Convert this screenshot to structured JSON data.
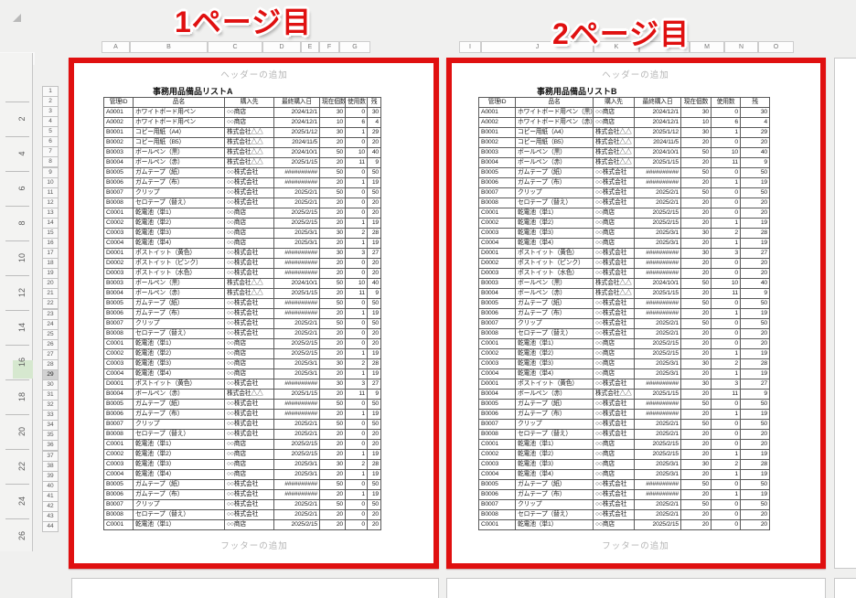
{
  "annotations": {
    "page1_label": "1ページ目",
    "page2_label": "2ページ目",
    "accent_red": "#e01010",
    "ruler_highlight_green": "#d6e8cf"
  },
  "ruler": {
    "numbers": [
      2,
      4,
      6,
      8,
      10,
      12,
      14,
      16,
      18,
      20,
      22,
      24,
      26
    ],
    "highlight_near": 16
  },
  "row_headers": {
    "numbers": [
      1,
      2,
      3,
      4,
      5,
      6,
      7,
      8,
      9,
      10,
      11,
      12,
      13,
      14,
      15,
      16,
      17,
      18,
      19,
      20,
      21,
      22,
      23,
      24,
      25,
      26,
      27,
      28,
      29,
      30,
      31,
      32,
      33,
      34,
      35,
      36,
      37,
      38,
      39,
      40,
      41,
      42,
      43,
      44
    ],
    "active": 29
  },
  "column_strips": {
    "page1": [
      "A",
      "B",
      "C",
      "D",
      "E",
      "F",
      "G"
    ],
    "page2": [
      "I",
      "J",
      "K",
      "L",
      "M",
      "N",
      "O"
    ]
  },
  "pages": [
    {
      "header_placeholder": "ヘッダーの追加",
      "footer_placeholder": "フッターの追加",
      "title": "事務用品備品リストA",
      "table": {
        "headers": [
          "管理ID",
          "品名",
          "購入先",
          "最終購入日",
          "現在個数",
          "使用数",
          "残"
        ],
        "rows": [
          [
            "A0001",
            "ホワイトボード用ペン",
            "○○商店",
            "2024/12/1",
            "30",
            "0",
            "30"
          ],
          [
            "A0002",
            "ホワイトボード用ペン",
            "○○商店",
            "2024/12/1",
            "10",
            "6",
            "4"
          ],
          [
            "B0001",
            "コピー用紙（A4）",
            "株式会社△△",
            "2025/1/12",
            "30",
            "1",
            "29"
          ],
          [
            "B0002",
            "コピー用紙（B5）",
            "株式会社△△",
            "2024/11/5",
            "20",
            "0",
            "20"
          ],
          [
            "B0003",
            "ボールペン（黒）",
            "株式会社△△",
            "2024/10/1",
            "50",
            "10",
            "40"
          ],
          [
            "B0004",
            "ボールペン（赤）",
            "株式会社△△",
            "2025/1/15",
            "20",
            "11",
            "9"
          ],
          [
            "B0005",
            "ガムテープ（紙）",
            "○○株式会社",
            "##########",
            "50",
            "0",
            "50"
          ],
          [
            "B0006",
            "ガムテープ（布）",
            "○○株式会社",
            "##########",
            "20",
            "1",
            "19"
          ],
          [
            "B0007",
            "クリップ",
            "○○株式会社",
            "2025/2/1",
            "50",
            "0",
            "50"
          ],
          [
            "B0008",
            "セロテープ（替え）",
            "○○株式会社",
            "2025/2/1",
            "20",
            "0",
            "20"
          ],
          [
            "C0001",
            "乾電池（単1）",
            "○○商店",
            "2025/2/15",
            "20",
            "0",
            "20"
          ],
          [
            "C0002",
            "乾電池（単2）",
            "○○商店",
            "2025/2/15",
            "20",
            "1",
            "19"
          ],
          [
            "C0003",
            "乾電池（単3）",
            "○○商店",
            "2025/3/1",
            "30",
            "2",
            "28"
          ],
          [
            "C0004",
            "乾電池（単4）",
            "○○商店",
            "2025/3/1",
            "20",
            "1",
            "19"
          ],
          [
            "D0001",
            "ポストイット（黄色）",
            "○○株式会社",
            "##########",
            "30",
            "3",
            "27"
          ],
          [
            "D0002",
            "ポストイット（ピンク）",
            "○○株式会社",
            "##########",
            "20",
            "0",
            "20"
          ],
          [
            "D0003",
            "ポストイット（水色）",
            "○○株式会社",
            "##########",
            "20",
            "0",
            "20"
          ],
          [
            "B0003",
            "ボールペン（黒）",
            "株式会社△△",
            "2024/10/1",
            "50",
            "10",
            "40"
          ],
          [
            "B0004",
            "ボールペン（赤）",
            "株式会社△△",
            "2025/1/15",
            "20",
            "11",
            "9"
          ],
          [
            "B0005",
            "ガムテープ（紙）",
            "○○株式会社",
            "##########",
            "50",
            "0",
            "50"
          ],
          [
            "B0006",
            "ガムテープ（布）",
            "○○株式会社",
            "##########",
            "20",
            "1",
            "19"
          ],
          [
            "B0007",
            "クリップ",
            "○○株式会社",
            "2025/2/1",
            "50",
            "0",
            "50"
          ],
          [
            "B0008",
            "セロテープ（替え）",
            "○○株式会社",
            "2025/2/1",
            "20",
            "0",
            "20"
          ],
          [
            "C0001",
            "乾電池（単1）",
            "○○商店",
            "2025/2/15",
            "20",
            "0",
            "20"
          ],
          [
            "C0002",
            "乾電池（単2）",
            "○○商店",
            "2025/2/15",
            "20",
            "1",
            "19"
          ],
          [
            "C0003",
            "乾電池（単3）",
            "○○商店",
            "2025/3/1",
            "30",
            "2",
            "28"
          ],
          [
            "C0004",
            "乾電池（単4）",
            "○○商店",
            "2025/3/1",
            "20",
            "1",
            "19"
          ],
          [
            "D0001",
            "ポストイット（黄色）",
            "○○株式会社",
            "##########",
            "30",
            "3",
            "27"
          ],
          [
            "B0004",
            "ボールペン（赤）",
            "株式会社△△",
            "2025/1/15",
            "20",
            "11",
            "9"
          ],
          [
            "B0005",
            "ガムテープ（紙）",
            "○○株式会社",
            "##########",
            "50",
            "0",
            "50"
          ],
          [
            "B0006",
            "ガムテープ（布）",
            "○○株式会社",
            "##########",
            "20",
            "1",
            "19"
          ],
          [
            "B0007",
            "クリップ",
            "○○株式会社",
            "2025/2/1",
            "50",
            "0",
            "50"
          ],
          [
            "B0008",
            "セロテープ（替え）",
            "○○株式会社",
            "2025/2/1",
            "20",
            "0",
            "20"
          ],
          [
            "C0001",
            "乾電池（単1）",
            "○○商店",
            "2025/2/15",
            "20",
            "0",
            "20"
          ],
          [
            "C0002",
            "乾電池（単2）",
            "○○商店",
            "2025/2/15",
            "20",
            "1",
            "19"
          ],
          [
            "C0003",
            "乾電池（単3）",
            "○○商店",
            "2025/3/1",
            "30",
            "2",
            "28"
          ],
          [
            "C0004",
            "乾電池（単4）",
            "○○商店",
            "2025/3/1",
            "20",
            "1",
            "19"
          ],
          [
            "B0005",
            "ガムテープ（紙）",
            "○○株式会社",
            "##########",
            "50",
            "0",
            "50"
          ],
          [
            "B0006",
            "ガムテープ（布）",
            "○○株式会社",
            "##########",
            "20",
            "1",
            "19"
          ],
          [
            "B0007",
            "クリップ",
            "○○株式会社",
            "2025/2/1",
            "50",
            "0",
            "50"
          ],
          [
            "B0008",
            "セロテープ（替え）",
            "○○株式会社",
            "2025/2/1",
            "20",
            "0",
            "20"
          ],
          [
            "C0001",
            "乾電池（単1）",
            "○○商店",
            "2025/2/15",
            "20",
            "0",
            "20"
          ]
        ]
      }
    },
    {
      "header_placeholder": "ヘッダーの追加",
      "footer_placeholder": "フッターの追加",
      "title": "事務用品備品リストB",
      "table": {
        "headers": [
          "管理ID",
          "品名",
          "購入先",
          "最終購入日",
          "現在個数",
          "使用数",
          "残"
        ],
        "rows": [
          [
            "A0001",
            "ホワイトボード用ペン（黒）",
            "○○商店",
            "2024/12/1",
            "30",
            "0",
            "30"
          ],
          [
            "A0002",
            "ホワイトボード用ペン（赤）",
            "○○商店",
            "2024/12/1",
            "10",
            "6",
            "4"
          ],
          [
            "B0001",
            "コピー用紙（A4）",
            "株式会社△△",
            "2025/1/12",
            "30",
            "1",
            "29"
          ],
          [
            "B0002",
            "コピー用紙（B5）",
            "株式会社△△",
            "2024/11/5",
            "20",
            "0",
            "20"
          ],
          [
            "B0003",
            "ボールペン（黒）",
            "株式会社△△",
            "2024/10/1",
            "50",
            "10",
            "40"
          ],
          [
            "B0004",
            "ボールペン（赤）",
            "株式会社△△",
            "2025/1/15",
            "20",
            "11",
            "9"
          ],
          [
            "B0005",
            "ガムテープ（紙）",
            "○○株式会社",
            "##########",
            "50",
            "0",
            "50"
          ],
          [
            "B0006",
            "ガムテープ（布）",
            "○○株式会社",
            "##########",
            "20",
            "1",
            "19"
          ],
          [
            "B0007",
            "クリップ",
            "○○株式会社",
            "2025/2/1",
            "50",
            "0",
            "50"
          ],
          [
            "B0008",
            "セロテープ（替え）",
            "○○株式会社",
            "2025/2/1",
            "20",
            "0",
            "20"
          ],
          [
            "C0001",
            "乾電池（単1）",
            "○○商店",
            "2025/2/15",
            "20",
            "0",
            "20"
          ],
          [
            "C0002",
            "乾電池（単2）",
            "○○商店",
            "2025/2/15",
            "20",
            "1",
            "19"
          ],
          [
            "C0003",
            "乾電池（単3）",
            "○○商店",
            "2025/3/1",
            "30",
            "2",
            "28"
          ],
          [
            "C0004",
            "乾電池（単4）",
            "○○商店",
            "2025/3/1",
            "20",
            "1",
            "19"
          ],
          [
            "D0001",
            "ポストイット（黄色）",
            "○○株式会社",
            "##########",
            "30",
            "3",
            "27"
          ],
          [
            "D0002",
            "ポストイット（ピンク）",
            "○○株式会社",
            "##########",
            "20",
            "0",
            "20"
          ],
          [
            "D0003",
            "ポストイット（水色）",
            "○○株式会社",
            "##########",
            "20",
            "0",
            "20"
          ],
          [
            "B0003",
            "ボールペン（黒）",
            "株式会社△△",
            "2024/10/1",
            "50",
            "10",
            "40"
          ],
          [
            "B0004",
            "ボールペン（赤）",
            "株式会社△△",
            "2025/1/15",
            "20",
            "11",
            "9"
          ],
          [
            "B0005",
            "ガムテープ（紙）",
            "○○株式会社",
            "##########",
            "50",
            "0",
            "50"
          ],
          [
            "B0006",
            "ガムテープ（布）",
            "○○株式会社",
            "##########",
            "20",
            "1",
            "19"
          ],
          [
            "B0007",
            "クリップ",
            "○○株式会社",
            "2025/2/1",
            "50",
            "0",
            "50"
          ],
          [
            "B0008",
            "セロテープ（替え）",
            "○○株式会社",
            "2025/2/1",
            "20",
            "0",
            "20"
          ],
          [
            "C0001",
            "乾電池（単1）",
            "○○商店",
            "2025/2/15",
            "20",
            "0",
            "20"
          ],
          [
            "C0002",
            "乾電池（単2）",
            "○○商店",
            "2025/2/15",
            "20",
            "1",
            "19"
          ],
          [
            "C0003",
            "乾電池（単3）",
            "○○商店",
            "2025/3/1",
            "30",
            "2",
            "28"
          ],
          [
            "C0004",
            "乾電池（単4）",
            "○○商店",
            "2025/3/1",
            "20",
            "1",
            "19"
          ],
          [
            "D0001",
            "ポストイット（黄色）",
            "○○株式会社",
            "##########",
            "30",
            "3",
            "27"
          ],
          [
            "B0004",
            "ボールペン（赤）",
            "株式会社△△",
            "2025/1/15",
            "20",
            "11",
            "9"
          ],
          [
            "B0005",
            "ガムテープ（紙）",
            "○○株式会社",
            "##########",
            "50",
            "0",
            "50"
          ],
          [
            "B0006",
            "ガムテープ（布）",
            "○○株式会社",
            "##########",
            "20",
            "1",
            "19"
          ],
          [
            "B0007",
            "クリップ",
            "○○株式会社",
            "2025/2/1",
            "50",
            "0",
            "50"
          ],
          [
            "B0008",
            "セロテープ（替え）",
            "○○株式会社",
            "2025/2/1",
            "20",
            "0",
            "20"
          ],
          [
            "C0001",
            "乾電池（単1）",
            "○○商店",
            "2025/2/15",
            "20",
            "0",
            "20"
          ],
          [
            "C0002",
            "乾電池（単2）",
            "○○商店",
            "2025/2/15",
            "20",
            "1",
            "19"
          ],
          [
            "C0003",
            "乾電池（単3）",
            "○○商店",
            "2025/3/1",
            "30",
            "2",
            "28"
          ],
          [
            "C0004",
            "乾電池（単4）",
            "○○商店",
            "2025/3/1",
            "20",
            "1",
            "19"
          ],
          [
            "B0005",
            "ガムテープ（紙）",
            "○○株式会社",
            "##########",
            "50",
            "0",
            "50"
          ],
          [
            "B0006",
            "ガムテープ（布）",
            "○○株式会社",
            "##########",
            "20",
            "1",
            "19"
          ],
          [
            "B0007",
            "クリップ",
            "○○株式会社",
            "2025/2/1",
            "50",
            "0",
            "50"
          ],
          [
            "B0008",
            "セロテープ（替え）",
            "○○株式会社",
            "2025/2/1",
            "20",
            "0",
            "20"
          ],
          [
            "C0001",
            "乾電池（単1）",
            "○○商店",
            "2025/2/15",
            "20",
            "0",
            "20"
          ]
        ]
      }
    }
  ]
}
